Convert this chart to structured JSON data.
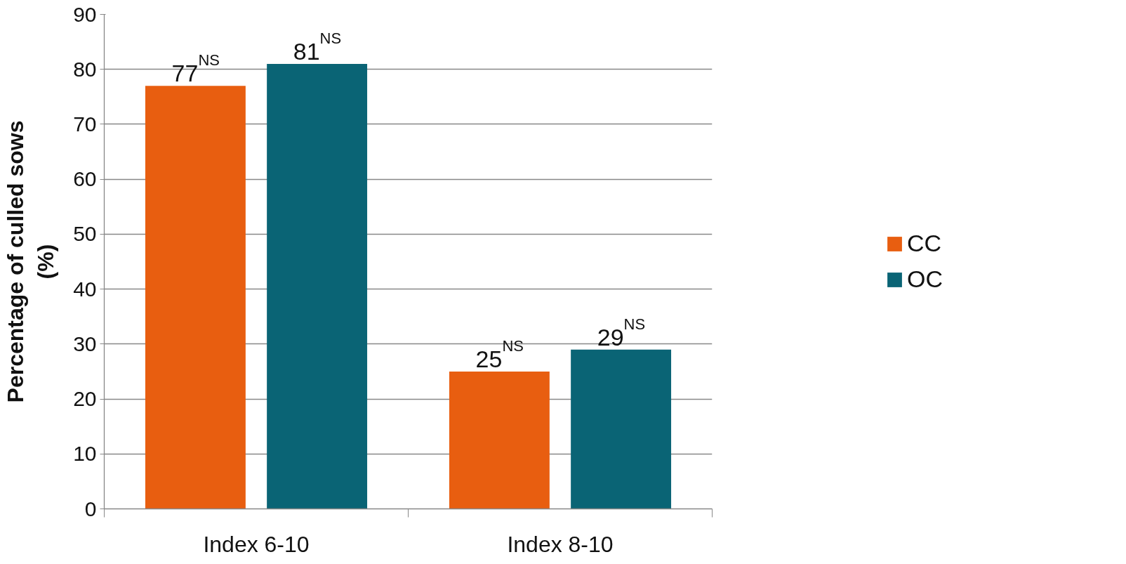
{
  "chart_data": {
    "type": "bar",
    "ylabel": "Percentage of culled sows\n(%)",
    "categories": [
      "Index 6-10",
      "Index 8-10"
    ],
    "series": [
      {
        "name": "CC",
        "color": "#e85e10",
        "values": [
          77,
          25
        ],
        "value_labels": [
          "77$^{NS}$",
          "25$^{NS}$"
        ]
      },
      {
        "name": "OC",
        "color": "#0a6475",
        "values": [
          81,
          29
        ],
        "value_labels": [
          "81$^{NS}$",
          "29$^{NS}$"
        ]
      }
    ],
    "ylim": [
      0,
      90
    ],
    "yticks": [
      0,
      10,
      20,
      30,
      40,
      50,
      60,
      70,
      80,
      90
    ],
    "grid": "y",
    "legend": "right"
  }
}
